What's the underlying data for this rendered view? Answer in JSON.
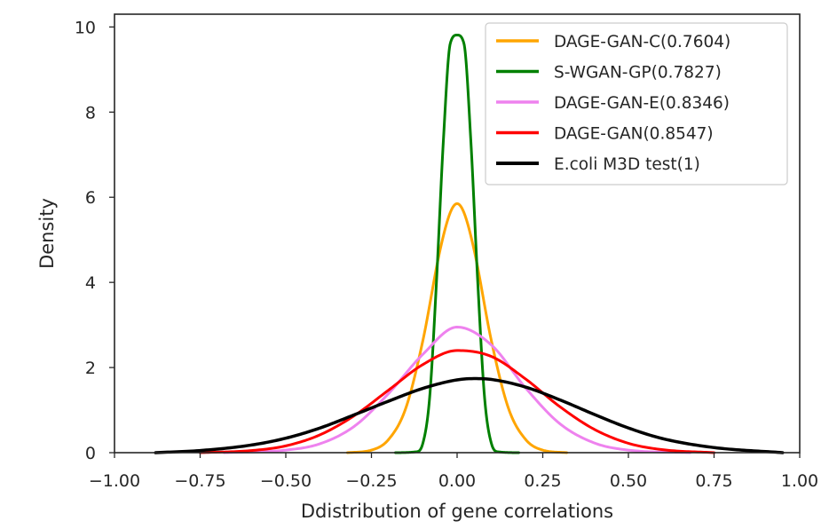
{
  "chart_data": {
    "type": "line",
    "title": "",
    "xlabel": "Ddistribution of gene correlations",
    "ylabel": "Density",
    "xlim": [
      -1.0,
      1.0
    ],
    "ylim": [
      0,
      10.3
    ],
    "x_ticks": [
      -1.0,
      -0.75,
      -0.5,
      -0.25,
      0.0,
      0.25,
      0.5,
      0.75,
      1.0
    ],
    "x_tick_labels": [
      "−1.00",
      "−0.75",
      "−0.50",
      "−0.25",
      "0.00",
      "0.25",
      "0.50",
      "0.75",
      "1.00"
    ],
    "y_ticks": [
      0,
      2,
      4,
      6,
      8,
      10
    ],
    "y_tick_labels": [
      "0",
      "2",
      "4",
      "6",
      "8",
      "10"
    ],
    "grid": false,
    "legend_position": "top-right",
    "series": [
      {
        "name": "DAGE-GAN-C(0.7604)",
        "color": "#FFA500",
        "line_width": 3,
        "x": [
          -0.32,
          -0.25,
          -0.2,
          -0.15,
          -0.1,
          -0.05,
          -0.02,
          0.0,
          0.02,
          0.05,
          0.1,
          0.15,
          0.2,
          0.25,
          0.32
        ],
        "y": [
          0.0,
          0.06,
          0.31,
          1.04,
          2.63,
          4.75,
          5.64,
          5.85,
          5.64,
          4.75,
          2.63,
          1.04,
          0.31,
          0.06,
          0.0
        ]
      },
      {
        "name": "S-WGAN-GP(0.7827)",
        "color": "#008000",
        "line_width": 3,
        "x": [
          -0.18,
          -0.12,
          -0.1,
          -0.08,
          -0.06,
          -0.04,
          -0.02,
          0.0,
          0.02,
          0.04,
          0.06,
          0.08,
          0.1,
          0.12,
          0.18
        ],
        "y": [
          0.0,
          0.02,
          0.22,
          1.31,
          4.05,
          7.34,
          9.61,
          9.81,
          9.61,
          7.34,
          4.05,
          1.31,
          0.22,
          0.02,
          0.0
        ]
      },
      {
        "name": "DAGE-GAN-E(0.8346)",
        "color": "#EE82EE",
        "line_width": 3,
        "x": [
          -0.68,
          -0.5,
          -0.4,
          -0.3,
          -0.2,
          -0.1,
          0.0,
          0.1,
          0.2,
          0.3,
          0.4,
          0.5,
          0.68
        ],
        "y": [
          0.0,
          0.06,
          0.21,
          0.62,
          1.39,
          2.31,
          2.95,
          2.53,
          1.52,
          0.68,
          0.23,
          0.06,
          0.0
        ]
      },
      {
        "name": "DAGE-GAN(0.8547)",
        "color": "#FF0000",
        "line_width": 3,
        "x": [
          -0.75,
          -0.6,
          -0.5,
          -0.4,
          -0.3,
          -0.2,
          -0.1,
          0.0,
          0.1,
          0.2,
          0.3,
          0.4,
          0.5,
          0.6,
          0.75
        ],
        "y": [
          0.0,
          0.05,
          0.16,
          0.42,
          0.87,
          1.47,
          2.07,
          2.4,
          2.26,
          1.73,
          1.08,
          0.55,
          0.22,
          0.07,
          0.0
        ]
      },
      {
        "name": "E.coli M3D test(1)",
        "color": "#000000",
        "line_width": 3.5,
        "x": [
          -0.88,
          -0.75,
          -0.6,
          -0.5,
          -0.4,
          -0.3,
          -0.2,
          -0.1,
          0.0,
          0.05,
          0.1,
          0.2,
          0.3,
          0.4,
          0.5,
          0.6,
          0.75,
          0.95
        ],
        "y": [
          0.0,
          0.05,
          0.18,
          0.34,
          0.58,
          0.89,
          1.21,
          1.51,
          1.71,
          1.74,
          1.72,
          1.54,
          1.24,
          0.9,
          0.58,
          0.33,
          0.12,
          0.0
        ]
      }
    ]
  }
}
